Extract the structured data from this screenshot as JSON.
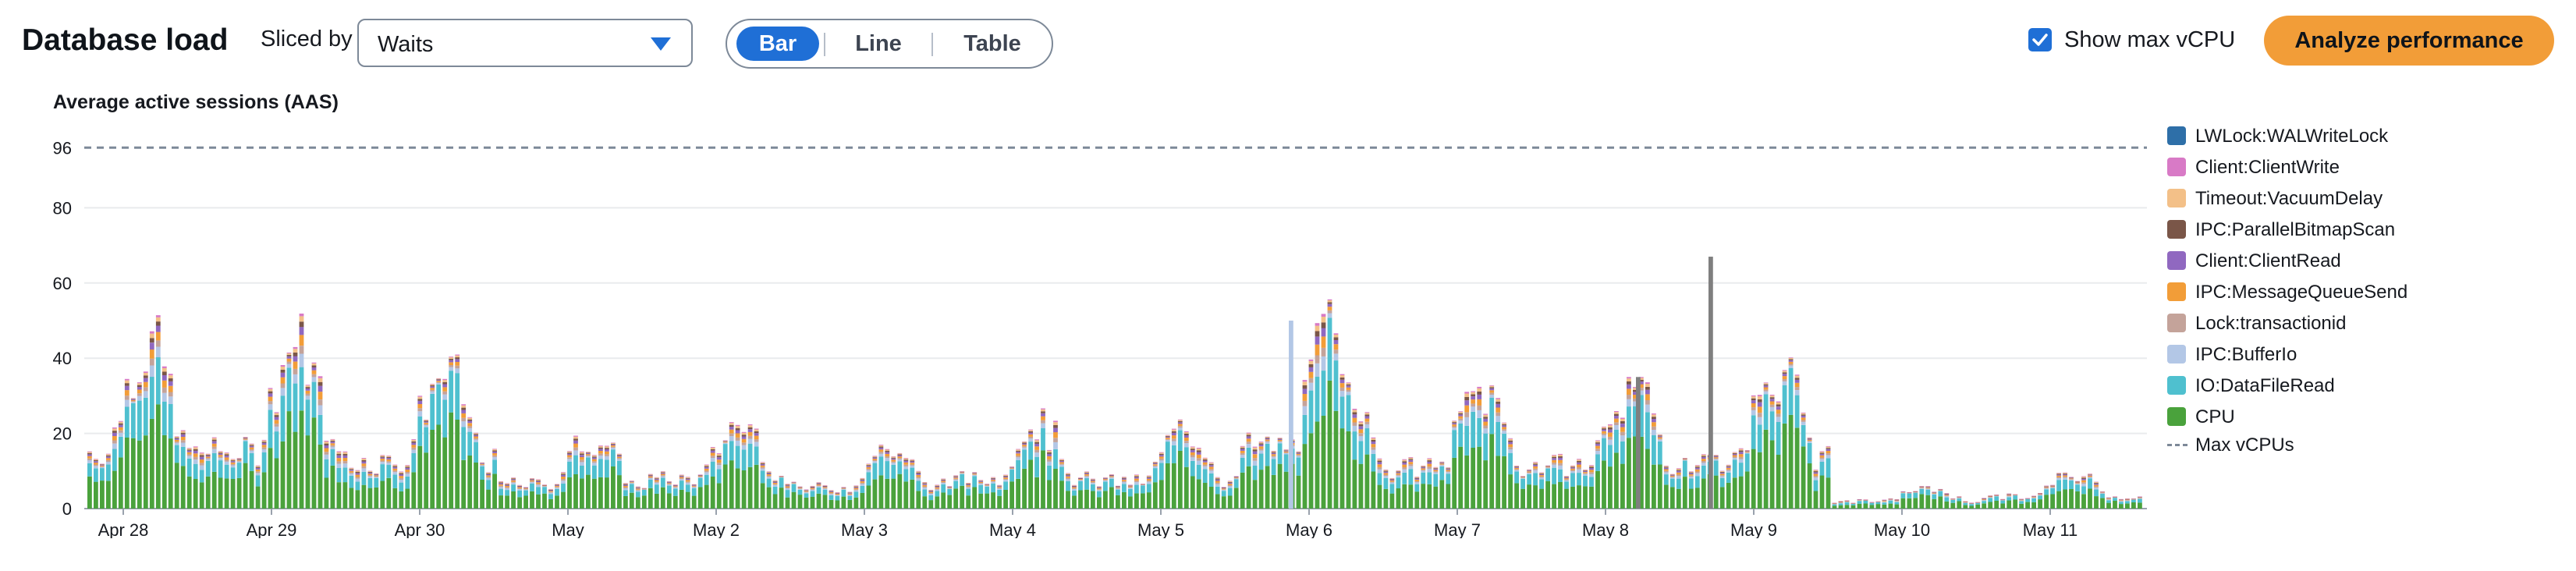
{
  "header": {
    "title": "Database load",
    "sliced_by_label": "Sliced by",
    "slice_select_value": "Waits",
    "view_options": [
      "Bar",
      "Line",
      "Table"
    ],
    "active_view": "Bar",
    "show_max_vcpu_label": "Show max vCPU",
    "show_max_vcpu_checked": true,
    "analyze_button_label": "Analyze performance",
    "accent_color": "#1f6fd6",
    "analyze_button_color": "#f29d38"
  },
  "chart_data": {
    "type": "bar",
    "stacked": true,
    "ylabel": "Average active sessions (AAS)",
    "ylim": [
      0,
      100
    ],
    "y_ticks": [
      0,
      20,
      40,
      60,
      80,
      96
    ],
    "x_ticks": [
      "Apr 28",
      "Apr 29",
      "Apr 30",
      "May",
      "May 2",
      "May 3",
      "May 4",
      "May 5",
      "May 6",
      "May 7",
      "May 8",
      "May 9",
      "May 10",
      "May 11"
    ],
    "grid": true,
    "legend_placement": "right",
    "max_vcpus": {
      "name": "Max vCPUs",
      "value": 96
    },
    "series": [
      {
        "name": "LWLock:WALWriteLock",
        "color": "#2e6fa8"
      },
      {
        "name": "Client:ClientWrite",
        "color": "#d87ac6"
      },
      {
        "name": "Timeout:VacuumDelay",
        "color": "#f3c088"
      },
      {
        "name": "IPC:ParallelBitmapScan",
        "color": "#7a5648"
      },
      {
        "name": "Client:ClientRead",
        "color": "#9068c0"
      },
      {
        "name": "IPC:MessageQueueSend",
        "color": "#f29d38"
      },
      {
        "name": "Lock:transactionid",
        "color": "#c4a39a"
      },
      {
        "name": "IPC:BufferIo",
        "color": "#b3c7e6"
      },
      {
        "name": "IO:DataFileRead",
        "color": "#4fc0cf"
      },
      {
        "name": "CPU",
        "color": "#4aa23c"
      }
    ],
    "sample_totals_by_day_approx": {
      "Apr 28": 46,
      "Apr 29": 46,
      "Apr 30": 38,
      "May": 20,
      "May 2": 24,
      "May 3": 17,
      "May 4": 24,
      "May 5": 22,
      "May 6": 50,
      "May 7": 33,
      "May 8": 35,
      "May 9": 67,
      "May 10": 10,
      "May 11": 16
    }
  }
}
